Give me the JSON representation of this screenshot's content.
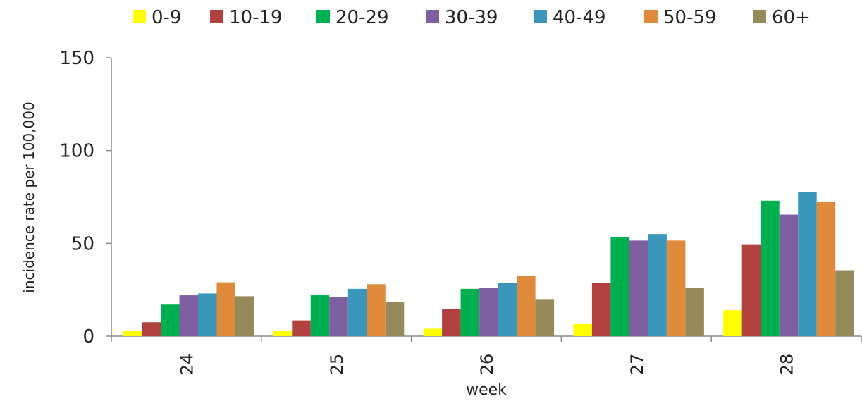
{
  "chart_data": {
    "type": "bar",
    "title": "",
    "xlabel": "week",
    "ylabel": "incidence rate per 100,000",
    "categories": [
      "24",
      "25",
      "26",
      "27",
      "28"
    ],
    "ylim": [
      0,
      150
    ],
    "yticks": [
      0,
      50,
      100,
      150
    ],
    "grid": false,
    "legend_position": "top",
    "series": [
      {
        "name": "0-9",
        "color": "#ffff00",
        "values": [
          3,
          3,
          4,
          6.5,
          14
        ]
      },
      {
        "name": "10-19",
        "color": "#b0413e",
        "values": [
          7.5,
          8.5,
          14.5,
          28.5,
          49.5
        ]
      },
      {
        "name": "20-29",
        "color": "#00b050",
        "values": [
          17,
          22,
          25.5,
          53.5,
          73
        ]
      },
      {
        "name": "30-39",
        "color": "#7e5fa0",
        "values": [
          22,
          21,
          26,
          51.5,
          65.5
        ]
      },
      {
        "name": "40-49",
        "color": "#3a97bb",
        "values": [
          23,
          25.5,
          28.5,
          55,
          77.5
        ]
      },
      {
        "name": "50-59",
        "color": "#e08a3c",
        "values": [
          29,
          28,
          32.5,
          51.5,
          72.5
        ]
      },
      {
        "name": "60+",
        "color": "#958a5a",
        "values": [
          21.5,
          18.5,
          20,
          26,
          35.5
        ]
      }
    ]
  }
}
